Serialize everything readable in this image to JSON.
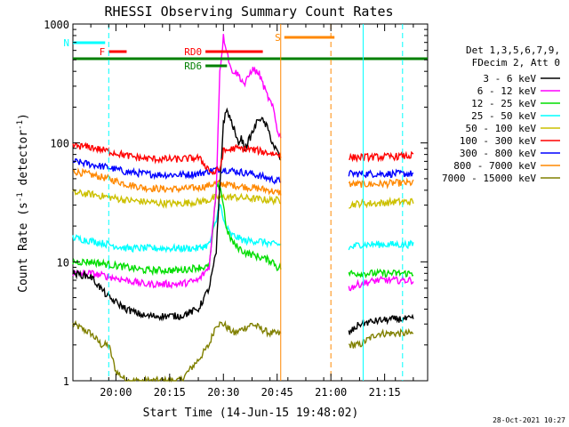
{
  "chart_data": {
    "type": "line",
    "title": "RHESSI Observing Summary Count Rates",
    "xlabel": "Start Time (14-Jun-15 19:48:02)",
    "ylabel_main": "Count Rate (s",
    "ylabel_sup1": "-1",
    "ylabel_mid": " detector",
    "ylabel_sup2": "-1",
    "ylabel_end": ")",
    "yscale": "log",
    "ylim": [
      1,
      1000
    ],
    "xlim_minutes": [
      0,
      99
    ],
    "x_ticks": [
      {
        "label": "20:00",
        "minutes": 12
      },
      {
        "label": "20:15",
        "minutes": 27
      },
      {
        "label": "20:30",
        "minutes": 42
      },
      {
        "label": "20:45",
        "minutes": 57
      },
      {
        "label": "21:00",
        "minutes": 72
      },
      {
        "label": "21:15",
        "minutes": 87
      }
    ],
    "y_ticks": [
      {
        "label": "1",
        "value": 1
      },
      {
        "label": "10",
        "value": 10
      },
      {
        "label": "100",
        "value": 100
      },
      {
        "label": "1000",
        "value": 1000
      }
    ],
    "legend_header": [
      "Det 1,3,5,6,7,9,",
      "FDecim 2, Att 0"
    ],
    "timestamp": "28-Oct-2021 10:27",
    "gap_minutes": [
      58,
      77
    ],
    "series": [
      {
        "name": "3 - 6 keV",
        "color": "#000000",
        "x": [
          0,
          5,
          10,
          15,
          20,
          25,
          30,
          35,
          38,
          40,
          42,
          43,
          45,
          46,
          47,
          48,
          50,
          52,
          54,
          56,
          57,
          77,
          80,
          85,
          90,
          95
        ],
        "values": [
          8,
          7.5,
          5,
          4,
          3.5,
          3.5,
          3.5,
          4,
          6,
          12,
          150,
          190,
          130,
          100,
          110,
          90,
          120,
          165,
          140,
          95,
          85,
          2.5,
          3,
          3.2,
          3.3,
          3.3
        ]
      },
      {
        "name": "6 - 12 keV",
        "color": "#ff00ff",
        "x": [
          0,
          5,
          10,
          15,
          20,
          25,
          30,
          35,
          38,
          40,
          41,
          42,
          43,
          44,
          46,
          48,
          50,
          52,
          54,
          56,
          57,
          77,
          80,
          85,
          90,
          95
        ],
        "values": [
          8,
          8,
          7.5,
          7,
          6.5,
          6.5,
          6.5,
          7,
          9,
          40,
          400,
          780,
          600,
          420,
          380,
          310,
          420,
          380,
          260,
          190,
          130,
          6,
          6.5,
          7,
          7,
          7
        ]
      },
      {
        "name": "12 - 25 keV",
        "color": "#00dd00",
        "x": [
          0,
          5,
          10,
          15,
          20,
          25,
          30,
          35,
          38,
          39,
          40,
          41,
          42,
          43,
          45,
          48,
          52,
          56,
          57,
          77,
          80,
          85,
          90,
          95
        ],
        "values": [
          10,
          10,
          9.5,
          9,
          8.5,
          8.5,
          8.5,
          9,
          9,
          17,
          40,
          45,
          30,
          18,
          14,
          12,
          11,
          10,
          9,
          8,
          8,
          8,
          8,
          8
        ]
      },
      {
        "name": "25 - 50 keV",
        "color": "#00ffff",
        "x": [
          0,
          5,
          10,
          15,
          20,
          25,
          30,
          35,
          38,
          40,
          41,
          42,
          44,
          46,
          48,
          52,
          56,
          57,
          77,
          80,
          85,
          90,
          95
        ],
        "values": [
          16,
          15,
          14,
          13,
          13,
          13,
          13,
          13,
          14,
          22,
          32,
          22,
          17,
          16,
          15,
          15,
          14,
          14,
          13,
          14,
          14,
          14,
          14
        ]
      },
      {
        "name": "50 - 100 keV",
        "color": "#ccc000",
        "x": [
          0,
          5,
          10,
          15,
          20,
          25,
          30,
          35,
          38,
          40,
          45,
          50,
          55,
          57,
          77,
          80,
          85,
          90,
          95
        ],
        "values": [
          38,
          37,
          35,
          33,
          32,
          31,
          31,
          32,
          33,
          35,
          35,
          34,
          33,
          33,
          30,
          31,
          31,
          32,
          32
        ]
      },
      {
        "name": "100 - 300 keV",
        "color": "#ff0000",
        "x": [
          0,
          5,
          10,
          15,
          20,
          25,
          30,
          35,
          38,
          39,
          40,
          41,
          42,
          45,
          50,
          55,
          57,
          77,
          80,
          85,
          90,
          95
        ],
        "values": [
          95,
          92,
          85,
          78,
          74,
          73,
          73,
          75,
          60,
          55,
          58,
          60,
          85,
          90,
          88,
          82,
          80,
          75,
          76,
          76,
          77,
          78
        ]
      },
      {
        "name": "300 - 800 keV",
        "color": "#0000ff",
        "x": [
          0,
          5,
          10,
          15,
          20,
          25,
          30,
          35,
          38,
          40,
          42,
          45,
          50,
          55,
          57,
          77,
          80,
          85,
          90,
          95
        ],
        "values": [
          70,
          66,
          62,
          57,
          55,
          54,
          54,
          55,
          58,
          60,
          60,
          58,
          55,
          50,
          48,
          55,
          55,
          55,
          55,
          55
        ]
      },
      {
        "name": "800 - 7000 keV",
        "color": "#ff8800",
        "x": [
          0,
          5,
          10,
          15,
          20,
          25,
          30,
          35,
          38,
          40,
          42,
          45,
          50,
          55,
          57,
          77,
          80,
          85,
          90,
          95
        ],
        "values": [
          58,
          54,
          50,
          45,
          42,
          41,
          41,
          42,
          44,
          46,
          45,
          44,
          42,
          40,
          38,
          45,
          45,
          45,
          46,
          46
        ]
      },
      {
        "name": "7000 - 15000 keV",
        "color": "#808000",
        "x": [
          0,
          5,
          8,
          10,
          12,
          15,
          20,
          25,
          30,
          35,
          38,
          40,
          42,
          45,
          50,
          55,
          57,
          77,
          80,
          85,
          90,
          95
        ],
        "values": [
          3,
          2.5,
          2,
          2,
          1.2,
          1,
          1,
          1,
          1,
          1.5,
          2,
          3,
          3,
          2.5,
          3,
          2.5,
          2.5,
          2,
          2,
          2.5,
          2.5,
          2.5
        ]
      }
    ],
    "annotations": [
      {
        "label": "N",
        "color": "#00ffff",
        "start_min": 0,
        "end_min": 9
      },
      {
        "label": "F",
        "color": "#ff0000",
        "start_min": 10,
        "end_min": 15
      },
      {
        "label": "S",
        "color": "#ff8800",
        "start_min": 59,
        "end_min": 73
      },
      {
        "label": "RD0",
        "color": "#ff0000",
        "start_min": 37,
        "end_min": 53
      },
      {
        "label": "RD6",
        "color": "#008000",
        "start_min": 37,
        "end_min": 43
      },
      {
        "label": "",
        "color": "#008000",
        "start_min": 0,
        "end_min": 99
      }
    ]
  }
}
